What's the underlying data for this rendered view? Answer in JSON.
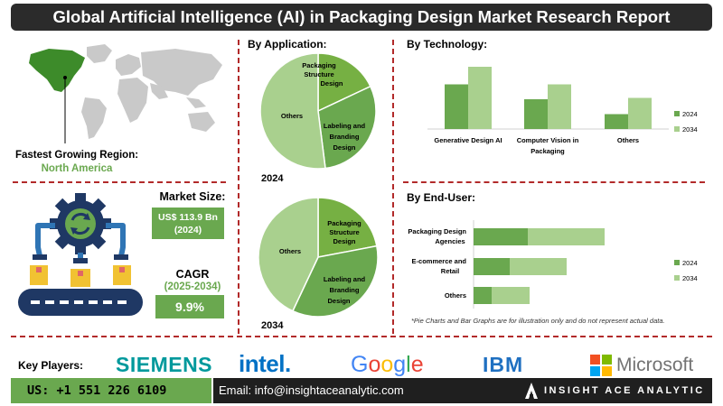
{
  "header": {
    "title": "Global Artificial Intelligence (AI) in Packaging Design Market Research Report"
  },
  "region": {
    "label": "Fastest Growing Region:",
    "value": "North America"
  },
  "market_size": {
    "label": "Market Size:",
    "value": "US$ 113.9 Bn",
    "year": "(2024)"
  },
  "cagr": {
    "label": "CAGR",
    "period": "(2025-2034)",
    "value": "9.9%"
  },
  "sections": {
    "application": "By Application:",
    "technology": "By Technology:",
    "end_user": "By End-User:"
  },
  "note": "*Pie Charts and Bar Graphs are for illustration only and do not represent actual data.",
  "key_players": {
    "label": "Key Players:",
    "logos": [
      "SIEMENS",
      "intel.",
      "Google",
      "IBM",
      "Microsoft"
    ]
  },
  "footer": {
    "phone": "US: +1 551 226 6109",
    "email": "Email: info@insightaceanalytic.com",
    "brand": "INSIGHT ACE ANALYTIC"
  },
  "colors": {
    "dark_green": "#6aa84f",
    "light_green": "#a9d08e",
    "mid_green": "#76b043",
    "divider_red": "#b22a2a",
    "title_bg": "#2b2b2b",
    "map_gray": "#c9c9c9",
    "map_highlight": "#3d8b2a",
    "icon_navy": "#1f3864",
    "icon_blue": "#2f75b5",
    "icon_yellow": "#f1c232"
  },
  "icons": [
    "world-map-icon",
    "automation-gear-icon",
    "conveyor-belt-icon",
    "robot-arm-icon",
    "box-icon",
    "insight-ace-logo-icon"
  ],
  "chart_data": [
    {
      "type": "pie",
      "title": "By Application:",
      "year": "2024",
      "slices": [
        {
          "label": "Packaging Structure Design",
          "value": 18
        },
        {
          "label": "Labeling and Branding Design",
          "value": 30
        },
        {
          "label": "Others",
          "value": 52
        }
      ]
    },
    {
      "type": "pie",
      "title": "By Application:",
      "year": "2034",
      "slices": [
        {
          "label": "Packaging Structure Design",
          "value": 22
        },
        {
          "label": "Labeling and Branding Design",
          "value": 35
        },
        {
          "label": "Others",
          "value": 43
        }
      ]
    },
    {
      "type": "bar",
      "title": "By Technology:",
      "orientation": "vertical",
      "categories": [
        "Generative Design AI",
        "Computer Vision in Packaging",
        "Others"
      ],
      "series": [
        {
          "name": "2024",
          "values": [
            3.3,
            2.2,
            1.1
          ]
        },
        {
          "name": "2034",
          "values": [
            4.6,
            3.3,
            2.3
          ]
        }
      ],
      "legend": "right"
    },
    {
      "type": "bar",
      "title": "By End-User:",
      "orientation": "horizontal-stacked",
      "categories": [
        "Packaging Design Agencies",
        "E-commerce and Retail",
        "Others"
      ],
      "series": [
        {
          "name": "2024",
          "values": [
            6.0,
            4.0,
            2.0
          ]
        },
        {
          "name": "2034",
          "values": [
            8.5,
            6.3,
            4.2
          ]
        }
      ],
      "legend": "right"
    }
  ]
}
